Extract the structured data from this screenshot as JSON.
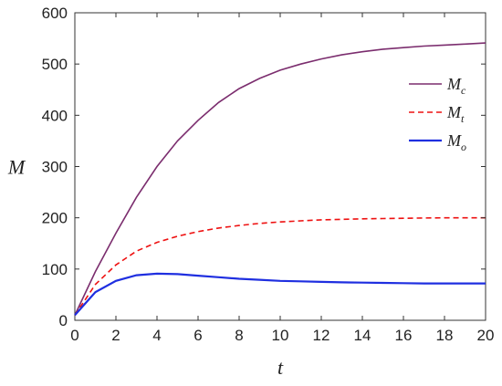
{
  "chart_data": {
    "type": "line",
    "title": "",
    "xlabel": "t",
    "ylabel": "M",
    "xlim": [
      0,
      20
    ],
    "ylim": [
      0,
      600
    ],
    "xticks": [
      0,
      2,
      4,
      6,
      8,
      10,
      12,
      14,
      16,
      18,
      20
    ],
    "yticks": [
      0,
      100,
      200,
      300,
      400,
      500,
      600
    ],
    "grid": false,
    "legend_position": "right",
    "series": [
      {
        "name": "M",
        "subscript": "c",
        "color": "#7b2d6e",
        "style": "solid",
        "x": [
          0,
          1,
          2,
          3,
          4,
          5,
          6,
          7,
          8,
          9,
          10,
          11,
          12,
          13,
          14,
          15,
          16,
          17,
          18,
          19,
          20
        ],
        "y": [
          10,
          95,
          170,
          240,
          300,
          350,
          390,
          425,
          452,
          472,
          488,
          500,
          510,
          518,
          524,
          529,
          532,
          535,
          537,
          539,
          541
        ]
      },
      {
        "name": "M",
        "subscript": "t",
        "color": "#ee1111",
        "style": "dashed",
        "x": [
          0,
          1,
          2,
          3,
          4,
          5,
          6,
          7,
          8,
          9,
          10,
          11,
          12,
          13,
          14,
          15,
          16,
          17,
          18,
          19,
          20
        ],
        "y": [
          10,
          70,
          108,
          135,
          152,
          164,
          173,
          180,
          185,
          189,
          192,
          194,
          196,
          197,
          198,
          198.5,
          199,
          199.5,
          200,
          200,
          200
        ]
      },
      {
        "name": "M",
        "subscript": "o",
        "color": "#1f2fe0",
        "style": "solid",
        "x": [
          0,
          1,
          2,
          3,
          4,
          5,
          6,
          7,
          8,
          9,
          10,
          11,
          12,
          13,
          14,
          15,
          16,
          17,
          18,
          19,
          20
        ],
        "y": [
          10,
          55,
          77,
          88,
          91,
          90,
          87,
          84,
          81,
          79,
          77,
          76,
          75,
          74,
          73.5,
          73,
          72.5,
          72,
          72,
          72,
          72
        ]
      }
    ]
  }
}
